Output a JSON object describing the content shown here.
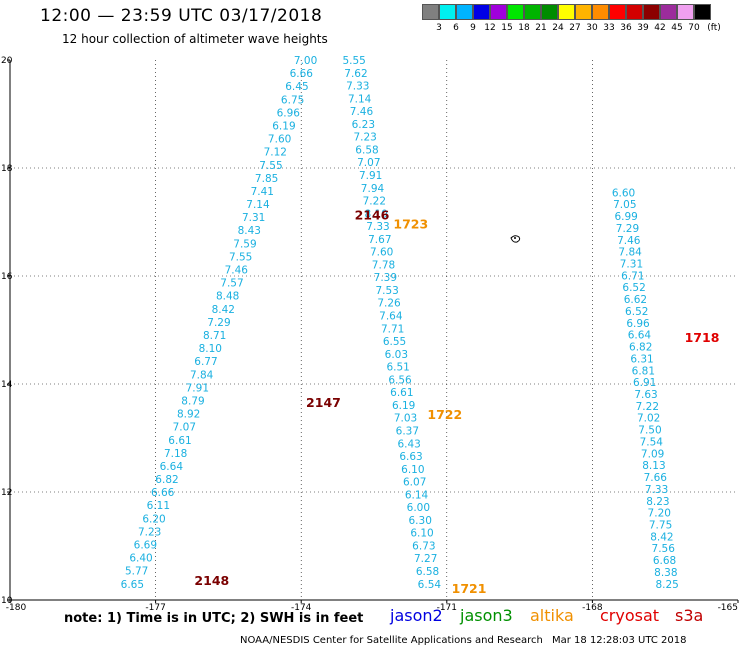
{
  "header": {
    "title": "12:00 — 23:59 UTC 03/17/2018",
    "subtitle": "12 hour collection of altimeter wave heights"
  },
  "legend": {
    "unit": "(ft)",
    "levels": [
      "3",
      "6",
      "9",
      "12",
      "15",
      "18",
      "21",
      "24",
      "27",
      "30",
      "33",
      "36",
      "39",
      "42",
      "45",
      "70"
    ],
    "colors": [
      "#808080",
      "#00f0f0",
      "#00b4ff",
      "#0000e6",
      "#a000dc",
      "#00e600",
      "#00b400",
      "#008c00",
      "#ffff00",
      "#ffb400",
      "#ff8c00",
      "#ff0000",
      "#d20000",
      "#8c0000",
      "#9c2c9c",
      "#f0a0f0",
      "#000000"
    ]
  },
  "map": {
    "lat_labels": [
      "20",
      "18",
      "16",
      "14",
      "12",
      "10"
    ],
    "lon_labels": [
      "-180",
      "-177",
      "-174",
      "-171",
      "-168",
      "-165"
    ],
    "lat_range": [
      10,
      20
    ],
    "lon_range": [
      -180,
      -165
    ],
    "passes": [
      {
        "values": [
          "7.00",
          "6.66",
          "6.45",
          "6.75",
          "6.96",
          "6.19",
          "7.60",
          "7.12",
          "7.55",
          "7.85",
          "7.41",
          "7.14",
          "7.31",
          "8.43",
          "7.59",
          "7.55",
          "7.46",
          "7.57",
          "8.48",
          "8.42",
          "7.29",
          "8.71",
          "8.10",
          "6.77",
          "7.84",
          "7.91",
          "8.79",
          "8.92",
          "7.07",
          "6.61",
          "7.18",
          "6.64",
          "6.82",
          "6.66",
          "6.11",
          "6.20",
          "7.23",
          "6.69",
          "6.40",
          "5.77",
          "6.65"
        ],
        "lat_start": 20.0,
        "lat_end": 10.3,
        "lon_start": -174.15,
        "lon_end": -177.72
      },
      {
        "values": [
          "5.55",
          "7.62",
          "7.33",
          "7.14",
          "7.46",
          "6.23",
          "7.23",
          "6.58",
          "7.07",
          "7.91",
          "7.94",
          "7.22",
          "8.10",
          "7.33",
          "7.67",
          "7.60",
          "7.78",
          "7.39",
          "7.53",
          "7.26",
          "7.64",
          "7.71",
          "6.55",
          "6.03",
          "6.51",
          "6.56",
          "6.61",
          "6.19",
          "7.03",
          "6.37",
          "6.43",
          "6.63",
          "6.10",
          "6.07",
          "6.14",
          "6.00",
          "6.30",
          "6.10",
          "6.73",
          "7.27",
          "6.58",
          "6.54"
        ],
        "lat_start": 20.0,
        "lat_end": 10.3,
        "lon_start": -173.15,
        "lon_end": -171.6
      },
      {
        "values": [
          "6.60",
          "7.05",
          "6.99",
          "7.29",
          "7.46",
          "7.84",
          "7.31",
          "6.71",
          "6.52",
          "6.62",
          "6.52",
          "6.96",
          "6.64",
          "6.82",
          "6.31",
          "6.81",
          "6.91",
          "7.63",
          "7.22",
          "7.02",
          "7.50",
          "7.54",
          "7.09",
          "8.13",
          "7.66",
          "7.33",
          "8.23",
          "7.20",
          "7.75",
          "8.42",
          "7.56",
          "6.68",
          "8.38",
          "8.25"
        ],
        "lat_start": 17.55,
        "lat_end": 10.3,
        "lon_start": -167.6,
        "lon_end": -166.7
      }
    ],
    "pass_labels": [
      {
        "text": "2146",
        "lat": 17.12,
        "lon": -172.9,
        "kind": "dark"
      },
      {
        "text": "1723",
        "lat": 16.95,
        "lon": -172.1,
        "kind": "orange"
      },
      {
        "text": "2147",
        "lat": 13.65,
        "lon": -173.9,
        "kind": "dark"
      },
      {
        "text": "1722",
        "lat": 13.43,
        "lon": -171.4,
        "kind": "orange"
      },
      {
        "text": "2148",
        "lat": 10.35,
        "lon": -176.2,
        "kind": "dark"
      },
      {
        "text": "1721",
        "lat": 10.2,
        "lon": -170.9,
        "kind": "orange"
      },
      {
        "text": "1718",
        "lat": 14.85,
        "lon": -166.1,
        "kind": "red"
      }
    ],
    "label_colors": {
      "value": "#1ab0e0",
      "dark": "#7a0000",
      "orange": "#f09000",
      "red": "#e00000"
    }
  },
  "footer": {
    "note": "note: 1) Time is in UTC; 2) SWH is in feet",
    "satellites": [
      {
        "name": "jason2",
        "color": "#0000e0"
      },
      {
        "name": "jason3",
        "color": "#009000"
      },
      {
        "name": "altika",
        "color": "#f09000"
      },
      {
        "name": "cryosat",
        "color": "#e00000"
      },
      {
        "name": "s3a",
        "color": "#c00000"
      }
    ],
    "credit": "NOAA/NESDIS Center for Satellite Applications and Research",
    "timestamp": "Mar 18 12:28:03 UTC 2018"
  }
}
